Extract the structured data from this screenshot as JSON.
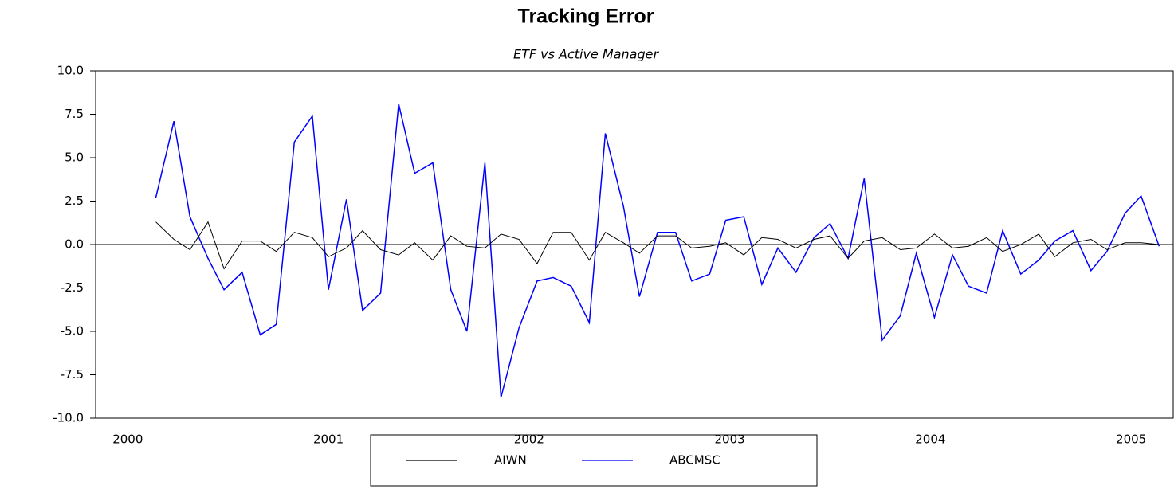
{
  "chart_data": {
    "type": "line",
    "title": "Tracking Error",
    "subtitle": "ETF vs Active Manager",
    "x": [
      2000.14,
      2000.23,
      2000.31,
      2000.4,
      2000.48,
      2000.57,
      2000.66,
      2000.74,
      2000.83,
      2000.92,
      2001.0,
      2001.09,
      2001.17,
      2001.26,
      2001.35,
      2001.43,
      2001.52,
      2001.61,
      2001.69,
      2001.78,
      2001.86,
      2001.95,
      2002.04,
      2002.12,
      2002.21,
      2002.3,
      2002.38,
      2002.47,
      2002.55,
      2002.64,
      2002.73,
      2002.81,
      2002.9,
      2002.98,
      2003.07,
      2003.16,
      2003.24,
      2003.33,
      2003.42,
      2003.5,
      2003.59,
      2003.67,
      2003.76,
      2003.85,
      2003.93,
      2004.02,
      2004.11,
      2004.19,
      2004.28,
      2004.36,
      2004.45,
      2004.54,
      2004.62,
      2004.71,
      2004.8,
      2004.88,
      2004.97,
      2005.05,
      2005.14
    ],
    "series": [
      {
        "name": "AIWN",
        "color": "#000000",
        "values": [
          1.3,
          0.3,
          -0.3,
          1.3,
          -1.4,
          0.2,
          0.2,
          -0.4,
          0.7,
          0.4,
          -0.7,
          -0.2,
          0.8,
          -0.3,
          -0.6,
          0.1,
          -0.9,
          0.5,
          -0.1,
          -0.2,
          0.6,
          0.3,
          -1.1,
          0.7,
          0.7,
          -0.9,
          0.7,
          0.1,
          -0.5,
          0.5,
          0.5,
          -0.2,
          -0.1,
          0.1,
          -0.6,
          0.4,
          0.3,
          -0.2,
          0.3,
          0.5,
          -0.8,
          0.2,
          0.4,
          -0.3,
          -0.2,
          0.6,
          -0.2,
          -0.1,
          0.4,
          -0.4,
          0.0,
          0.6,
          -0.7,
          0.1,
          0.3,
          -0.3,
          0.1,
          0.1,
          0.0
        ]
      },
      {
        "name": "ABCMSC",
        "color": "#0000ff",
        "values": [
          2.7,
          7.1,
          1.6,
          -0.8,
          -2.6,
          -1.6,
          -5.2,
          -4.6,
          5.9,
          7.4,
          -2.6,
          2.6,
          -3.8,
          -2.8,
          8.1,
          4.1,
          4.7,
          -2.6,
          -5.0,
          4.7,
          -8.8,
          -4.8,
          -2.1,
          -1.9,
          -2.4,
          -4.5,
          6.4,
          2.2,
          -3.0,
          0.7,
          0.7,
          -2.1,
          -1.7,
          1.4,
          1.6,
          -2.3,
          -0.2,
          -1.6,
          0.4,
          1.2,
          -0.8,
          3.8,
          -5.5,
          -4.1,
          -0.5,
          -4.2,
          -0.6,
          -2.4,
          -2.8,
          0.8,
          -1.7,
          -0.9,
          0.2,
          0.8,
          -1.5,
          -0.4,
          1.8,
          2.8,
          -0.1
        ]
      }
    ],
    "xlim": [
      1999.84,
      2005.21
    ],
    "xticks": [
      2000,
      2001,
      2002,
      2003,
      2004,
      2005
    ],
    "ylim": [
      -10,
      10
    ],
    "yticks": [
      {
        "value": -10,
        "label": "-10.0"
      },
      {
        "value": -7.5,
        "label": "-7.5"
      },
      {
        "value": -5,
        "label": "-5.0"
      },
      {
        "value": -2.5,
        "label": "-2.5"
      },
      {
        "value": 0,
        "label": "0.0"
      },
      {
        "value": 2.5,
        "label": "2.5"
      },
      {
        "value": 5,
        "label": "5.0"
      },
      {
        "value": 7.5,
        "label": "7.5"
      },
      {
        "value": 10,
        "label": "10.0"
      }
    ],
    "zero_line": true,
    "legend": "bottom"
  }
}
